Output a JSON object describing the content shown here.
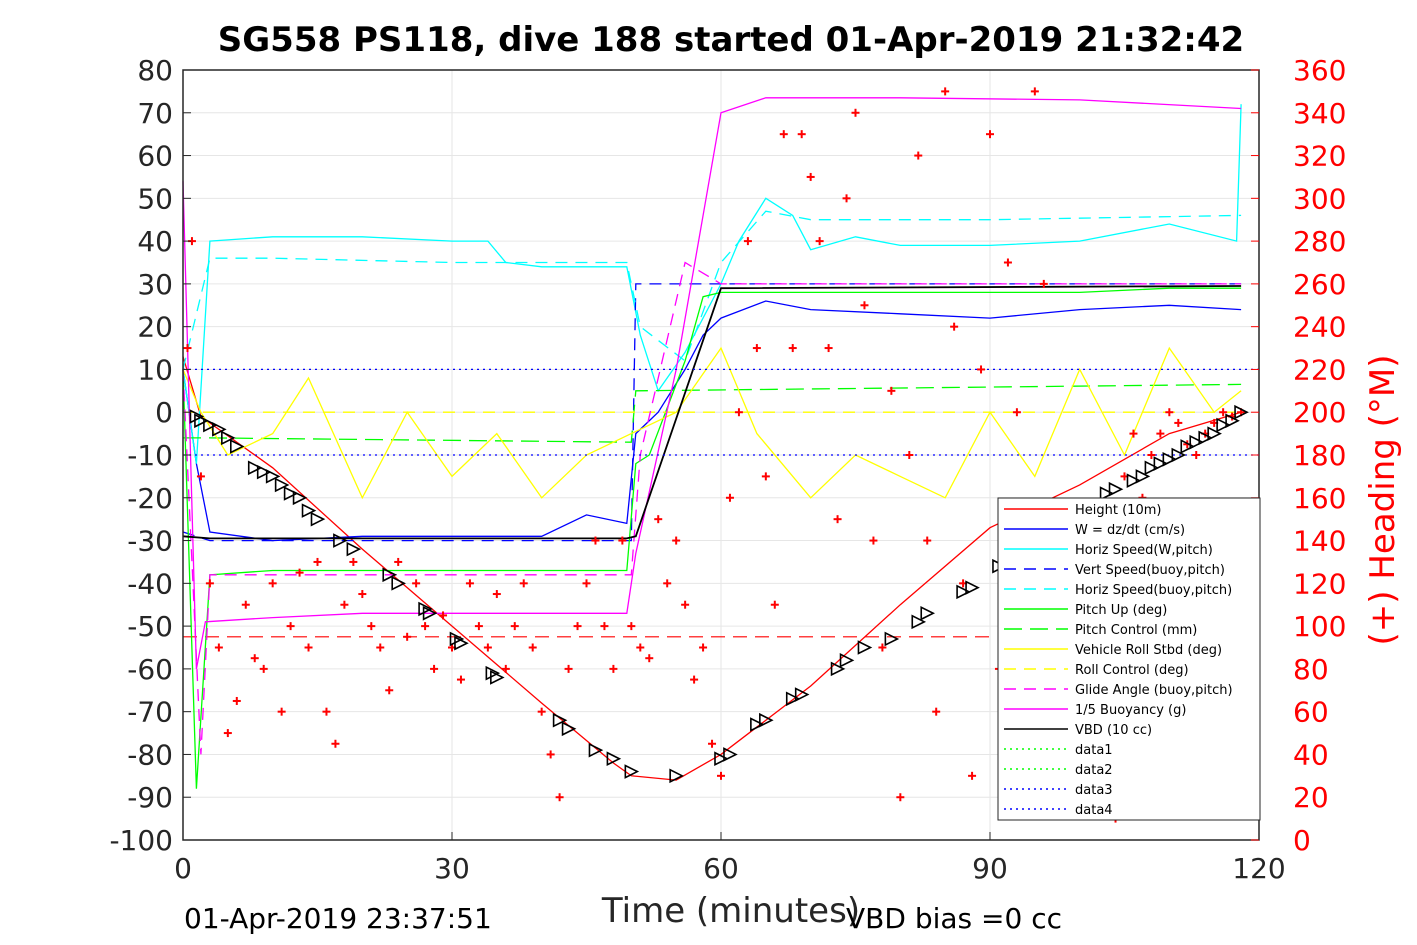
{
  "figure": {
    "title": "SG558 PS118, dive 188 started 01-Apr-2019 21:32:42",
    "footer_left": "01-Apr-2019 23:37:51",
    "footer_right": "VBD bias =0 cc"
  },
  "chart_data": {
    "type": "line",
    "title": "SG558 PS118, dive 188 started 01-Apr-2019 21:32:42",
    "xlabel": "Time (minutes)",
    "ylabel": "",
    "ylabel_right": "(+) Heading (°M)",
    "xlim": [
      0,
      120
    ],
    "ylim": [
      -100,
      80
    ],
    "ylim_right": [
      0,
      360
    ],
    "x_ticks": [
      "0",
      "30",
      "60",
      "90",
      "120"
    ],
    "y_ticks": [
      "80",
      "70",
      "60",
      "50",
      "40",
      "30",
      "20",
      "10",
      "0",
      "-10",
      "-20",
      "-30",
      "-40",
      "-50",
      "-60",
      "-70",
      "-80",
      "-90",
      "-100"
    ],
    "y_ticks_right": [
      "360",
      "340",
      "320",
      "300",
      "280",
      "260",
      "240",
      "220",
      "200",
      "180",
      "160",
      "140",
      "120",
      "100",
      "80",
      "60",
      "40",
      "20",
      "0"
    ],
    "grid": true,
    "legend_position": "bottom-right",
    "colors": {
      "axis_text": "#262626",
      "heading": "#ff0000",
      "height": "#ff0000",
      "w": "#0000ff",
      "horiz": "#00ffff",
      "pitch": "#00ff00",
      "roll": "#ffff00",
      "glide": "#ff00ff",
      "buoyancy": "#ff00ff",
      "vbd": "#000000"
    },
    "series": [
      {
        "name": "Height (10m)",
        "color": "#ff0000",
        "dash": "",
        "x": [
          0,
          2,
          10,
          20,
          30,
          40,
          48,
          50,
          55,
          60,
          70,
          80,
          90,
          100,
          110,
          118
        ],
        "y": [
          13,
          -1,
          -13,
          -32,
          -50,
          -68,
          -82,
          -85,
          -86,
          -80,
          -64,
          -45,
          -27,
          -17,
          -5,
          0
        ]
      },
      {
        "name": "W = dz/dt (cm/s)",
        "color": "#0000ff",
        "dash": "",
        "x": [
          0,
          1.5,
          3,
          10,
          20,
          30,
          40,
          45,
          49.5,
          50.5,
          53,
          56,
          58,
          60,
          65,
          70,
          80,
          90,
          100,
          110,
          118
        ],
        "y": [
          10,
          -12,
          -28,
          -30,
          -29,
          -29,
          -29,
          -24,
          -26,
          -5,
          0,
          10,
          18,
          22,
          26,
          24,
          23,
          22,
          24,
          25,
          24
        ]
      },
      {
        "name": "Horiz Speed(W,pitch)",
        "color": "#00ffff",
        "dash": "",
        "x": [
          0,
          1.5,
          3,
          10,
          20,
          30,
          34,
          36,
          40,
          49.5,
          51,
          53,
          56,
          60,
          62,
          65,
          68,
          70,
          75,
          80,
          90,
          100,
          110,
          117.5,
          118
        ],
        "y": [
          10,
          -12,
          40,
          41,
          41,
          40,
          40,
          35,
          34,
          34,
          18,
          5,
          14,
          30,
          40,
          50,
          46,
          38,
          41,
          39,
          39,
          40,
          44,
          40,
          72
        ]
      },
      {
        "name": "Vert Speed(buoy,pitch)",
        "color": "#0000ff",
        "dash": "12,8",
        "x": [
          0,
          3,
          50,
          50.5,
          60,
          118
        ],
        "y": [
          -28,
          -30,
          -30,
          30,
          30,
          30
        ]
      },
      {
        "name": "Horiz Speed(buoy,pitch)",
        "color": "#00ffff",
        "dash": "12,8",
        "x": [
          0,
          3,
          10,
          30,
          49.5,
          51,
          56,
          60,
          65,
          70,
          90,
          118
        ],
        "y": [
          10,
          36,
          36,
          35,
          35,
          20,
          12,
          35,
          47,
          45,
          45,
          46
        ]
      },
      {
        "name": "Pitch Up (deg)",
        "color": "#00ff00",
        "dash": "",
        "x": [
          0,
          1.5,
          3,
          10,
          20,
          30,
          40,
          49.5,
          50.5,
          52,
          56,
          58,
          60,
          70,
          80,
          90,
          100,
          110,
          118
        ],
        "y": [
          10,
          -88,
          -38,
          -37,
          -37,
          -37,
          -37,
          -37,
          -12,
          -10,
          12,
          27,
          28,
          28,
          28,
          28,
          28,
          29,
          29
        ]
      },
      {
        "name": "Pitch Control (mm)",
        "color": "#00ff00",
        "dash": "18,8",
        "x": [
          0,
          3,
          50,
          50.5,
          118
        ],
        "y": [
          -6,
          -6,
          -7,
          5,
          6.5
        ]
      },
      {
        "name": "Vehicle Roll Stbd (deg)",
        "color": "#ffff00",
        "dash": "",
        "x": [
          0,
          2,
          5,
          10,
          14,
          20,
          25,
          30,
          35,
          40,
          45,
          50,
          55,
          60,
          64,
          70,
          75,
          80,
          85,
          90,
          95,
          100,
          105,
          110,
          115,
          118
        ],
        "y": [
          10,
          0,
          -10,
          -5,
          8,
          -20,
          0,
          -15,
          -5,
          -20,
          -10,
          -5,
          0,
          15,
          -5,
          -20,
          -10,
          -15,
          -20,
          0,
          -15,
          10,
          -10,
          15,
          0,
          5
        ]
      },
      {
        "name": "Roll Control (deg)",
        "color": "#ffff00",
        "dash": "12,8",
        "x": [
          0,
          118
        ],
        "y": [
          0,
          0
        ]
      },
      {
        "name": "Glide Angle (buoy,pitch)",
        "color": "#ff00ff",
        "dash": "12,8",
        "x": [
          0,
          2,
          3,
          50,
          51,
          56,
          60,
          118
        ],
        "y": [
          10,
          -80,
          -38,
          -38,
          -10,
          35,
          30,
          30
        ]
      },
      {
        "name": "1/5 Buoyancy (g)",
        "color": "#ff00ff",
        "dash": "",
        "x": [
          0,
          1.5,
          2.5,
          10,
          20,
          30,
          40,
          49.5,
          50.5,
          55,
          60,
          65,
          80,
          100,
          118
        ],
        "y": [
          54,
          -60,
          -49,
          -48,
          -47,
          -47,
          -47,
          -47,
          -33,
          10,
          70,
          73.5,
          73.5,
          73,
          71
        ]
      },
      {
        "name": "VBD (10 cc)",
        "color": "#000000",
        "dash": "",
        "x": [
          0,
          3,
          49.5,
          50.5,
          60,
          118
        ],
        "y": [
          -29,
          -29.5,
          -29.5,
          -29,
          29,
          29.5
        ]
      },
      {
        "name": "data1",
        "color": "#00ff00",
        "dash": "2,4",
        "x": [],
        "y": []
      },
      {
        "name": "data2",
        "color": "#00ff00",
        "dash": "2,4",
        "x": [],
        "y": []
      },
      {
        "name": "data3",
        "color": "#0000ff",
        "dash": "2,4",
        "x": [
          0,
          120
        ],
        "y": [
          10,
          10
        ]
      },
      {
        "name": "data4",
        "color": "#0000ff",
        "dash": "2,4",
        "x": [
          0,
          120
        ],
        "y": [
          -10,
          -10
        ]
      }
    ],
    "extra_lines": [
      {
        "color": "#ff0000",
        "dash": "14,8",
        "y": -52.5,
        "x": [
          0,
          90
        ]
      }
    ],
    "heading_markers": {
      "name": "(+) Heading (°M)",
      "marker": "+",
      "color": "#ff0000",
      "x": [
        0.5,
        1,
        2,
        3,
        4,
        5,
        6,
        7,
        8,
        9,
        10,
        11,
        12,
        13,
        14,
        15,
        16,
        17,
        18,
        19,
        20,
        21,
        22,
        23,
        24,
        25,
        26,
        27,
        28,
        29,
        30,
        31,
        32,
        33,
        34,
        35,
        36,
        37,
        38,
        39,
        40,
        41,
        42,
        43,
        44,
        45,
        46,
        47,
        48,
        49,
        50,
        51,
        52,
        53,
        54,
        55,
        56,
        57,
        58,
        59,
        60,
        61,
        62,
        63,
        64,
        65,
        66,
        67,
        68,
        69,
        70,
        71,
        72,
        73,
        74,
        75,
        76,
        77,
        78,
        79,
        80,
        81,
        82,
        83,
        84,
        85,
        86,
        87,
        88,
        89,
        90,
        91,
        92,
        93,
        94,
        95,
        96,
        97,
        98,
        99,
        100,
        101,
        102,
        103,
        104,
        105,
        106,
        107,
        108,
        109,
        110,
        111,
        112,
        113,
        114,
        115,
        116,
        117,
        118
      ],
      "y": [
        230,
        280,
        170,
        120,
        90,
        50,
        65,
        110,
        85,
        80,
        120,
        60,
        100,
        125,
        90,
        130,
        60,
        45,
        110,
        130,
        115,
        100,
        90,
        70,
        130,
        95,
        120,
        100,
        80,
        105,
        90,
        75,
        120,
        100,
        90,
        115,
        80,
        100,
        120,
        90,
        60,
        40,
        20,
        80,
        100,
        120,
        140,
        100,
        80,
        140,
        100,
        90,
        85,
        150,
        120,
        140,
        110,
        75,
        90,
        45,
        30,
        160,
        200,
        280,
        230,
        170,
        110,
        330,
        230,
        330,
        310,
        280,
        230,
        150,
        300,
        340,
        250,
        140,
        90,
        210,
        20,
        180,
        320,
        140,
        60,
        350,
        240,
        120,
        30,
        220,
        330,
        80,
        270,
        200,
        120,
        350,
        260,
        130,
        30,
        60,
        120,
        150,
        120,
        90,
        10,
        170,
        190,
        160,
        180,
        190,
        200,
        195,
        185,
        180,
        190,
        195,
        200,
        198,
        200
      ]
    },
    "vbd_triangles": {
      "color": "#000000",
      "x": [
        1.5,
        2,
        3,
        4,
        5,
        6,
        8,
        9,
        10,
        11,
        12,
        13,
        14,
        15,
        17.5,
        19,
        23,
        24,
        27,
        27.5,
        30.5,
        31,
        34.5,
        35,
        42,
        43,
        46,
        48,
        50,
        55,
        60,
        61,
        64,
        65,
        68,
        69,
        73,
        74,
        76,
        79,
        82,
        83,
        87,
        88,
        91,
        92,
        95,
        96,
        99,
        100,
        103,
        104,
        106,
        107,
        108,
        109,
        110,
        111,
        112,
        113,
        114,
        115,
        116,
        117,
        118
      ],
      "y": [
        -1,
        -2,
        -3,
        -4,
        -6,
        -8,
        -13,
        -14,
        -15,
        -17,
        -19,
        -20,
        -23,
        -25,
        -30,
        -32,
        -38,
        -40,
        -46,
        -47,
        -53,
        -54,
        -61,
        -62,
        -72,
        -74,
        -79,
        -81,
        -84,
        -85,
        -81,
        -80,
        -73,
        -72,
        -67,
        -66,
        -60,
        -58,
        -55,
        -53,
        -49,
        -47,
        -42,
        -41,
        -36,
        -35,
        -30,
        -29,
        -25,
        -24,
        -19,
        -18,
        -16,
        -15,
        -13,
        -12,
        -11,
        -10,
        -8,
        -7,
        -6,
        -5,
        -3,
        -2,
        0
      ]
    }
  }
}
